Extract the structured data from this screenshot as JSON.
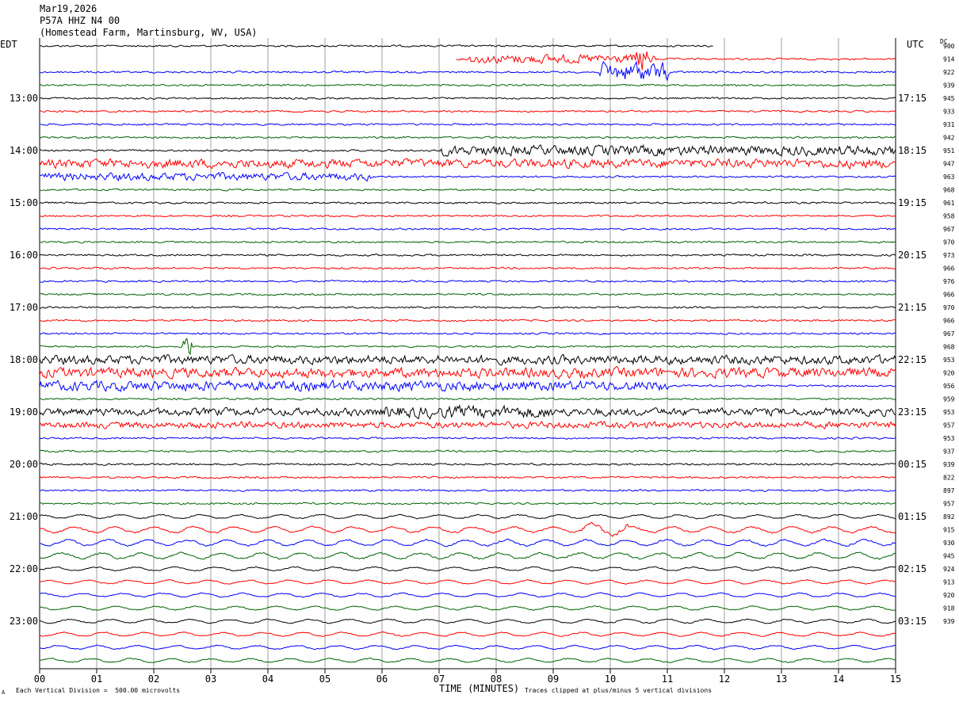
{
  "header": {
    "date": "Mar19,2026",
    "station": "P57A HHZ N4 00",
    "location": "(Homestead Farm, Martinsburg, WV, USA)"
  },
  "axis": {
    "left_tz": "EDT",
    "right_tz": "UTC",
    "dc_label": "DC",
    "xlabel": "TIME (MINUTES)",
    "scale_note": "Each Vertical Division =  500.00 microvolts",
    "clip_note": "Traces clipped at plus/minus 5 vertical divisions",
    "corner_mark": "A"
  },
  "colors": {
    "black": "#000000",
    "red": "#ff0000",
    "blue": "#0000ff",
    "green": "#006400",
    "grid": "#888888"
  },
  "chart_data": {
    "type": "line",
    "title": "P57A HHZ N4 00",
    "x_ticks": [
      "00",
      "01",
      "02",
      "03",
      "04",
      "05",
      "06",
      "07",
      "08",
      "09",
      "10",
      "11",
      "12",
      "13",
      "14",
      "15"
    ],
    "xlim": [
      0,
      15
    ],
    "left_time_labels": [
      "13:00",
      "14:00",
      "15:00",
      "16:00",
      "17:00",
      "18:00",
      "19:00",
      "20:00",
      "21:00",
      "22:00",
      "23:00"
    ],
    "right_time_labels": [
      "17:15",
      "18:15",
      "19:15",
      "20:15",
      "21:15",
      "22:15",
      "23:15",
      "00:15",
      "01:15",
      "02:15",
      "03:15"
    ],
    "dc_offsets": [
      "900",
      "914",
      "922",
      "939",
      "945",
      "933",
      "931",
      "942",
      "951",
      "947",
      "963",
      "968",
      "961",
      "958",
      "967",
      "970",
      "973",
      "966",
      "976",
      "966",
      "970",
      "966",
      "967",
      "968",
      "953",
      "920",
      "956",
      "959",
      "953",
      "957",
      "953",
      "937",
      "939",
      "822",
      "897",
      "957",
      "892",
      "915",
      "930",
      "945",
      "924",
      "913",
      "920",
      "918",
      "939"
    ],
    "trace_colors": [
      "black",
      "red",
      "blue",
      "green"
    ],
    "trace_count": 48,
    "first_label_row": 4
  }
}
